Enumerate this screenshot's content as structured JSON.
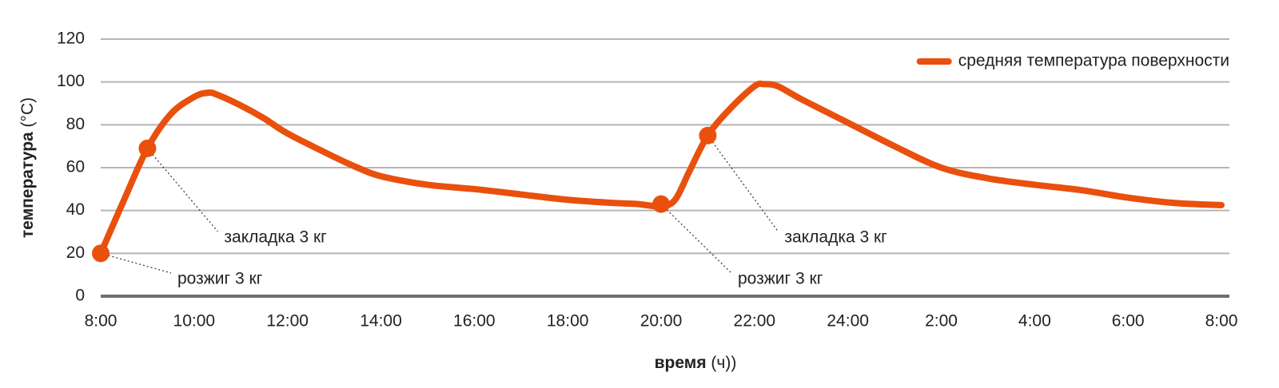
{
  "chart_data": {
    "type": "line",
    "xlabel": {
      "bold": "время",
      "unit": "(ч))"
    },
    "ylabel": {
      "bold": "температура",
      "unit": "(°C)"
    },
    "x": [
      8,
      8.5,
      9,
      9.5,
      10,
      10.3,
      10.5,
      11,
      11.5,
      12,
      13,
      13.5,
      14,
      15,
      16,
      17,
      18,
      19,
      19.5,
      20,
      20.3,
      20.6,
      21,
      21.5,
      22,
      22.2,
      22.5,
      23,
      24,
      25,
      26,
      27,
      28,
      29,
      30,
      31,
      32
    ],
    "series": [
      {
        "name": "средняя температура поверхности",
        "color": "#e9500e",
        "values": [
          20,
          45,
          69,
          85,
          93,
          95,
          94,
          89,
          83,
          76,
          65,
          60,
          56,
          52,
          50,
          47.5,
          45,
          43.5,
          43,
          42,
          45,
          58,
          75,
          88,
          98,
          99,
          98,
          92,
          81,
          70,
          60,
          55,
          52,
          49.5,
          46,
          43.5,
          42.5
        ]
      }
    ],
    "annotations": [
      {
        "x": 8,
        "y": 20,
        "text": "розжиг 3 кг"
      },
      {
        "x": 9,
        "y": 69,
        "text": "закладка 3 кг"
      },
      {
        "x": 20,
        "y": 43,
        "text": "розжиг 3 кг"
      },
      {
        "x": 21,
        "y": 75,
        "text": "закладка 3 кг"
      }
    ],
    "xlim": [
      8,
      32
    ],
    "xticks": [
      {
        "value": 8,
        "label": "8:00"
      },
      {
        "value": 10,
        "label": "10:00"
      },
      {
        "value": 12,
        "label": "12:00"
      },
      {
        "value": 14,
        "label": "14:00"
      },
      {
        "value": 16,
        "label": "16:00"
      },
      {
        "value": 18,
        "label": "18:00"
      },
      {
        "value": 20,
        "label": "20:00"
      },
      {
        "value": 22,
        "label": "22:00"
      },
      {
        "value": 24,
        "label": "24:00"
      },
      {
        "value": 26,
        "label": "2:00"
      },
      {
        "value": 28,
        "label": "4:00"
      },
      {
        "value": 30,
        "label": "6:00"
      },
      {
        "value": 32,
        "label": "8:00"
      }
    ],
    "ylim": [
      0,
      120
    ],
    "yticks": [
      0,
      20,
      40,
      60,
      80,
      100,
      120
    ],
    "grid": true,
    "legend": "top-right"
  }
}
